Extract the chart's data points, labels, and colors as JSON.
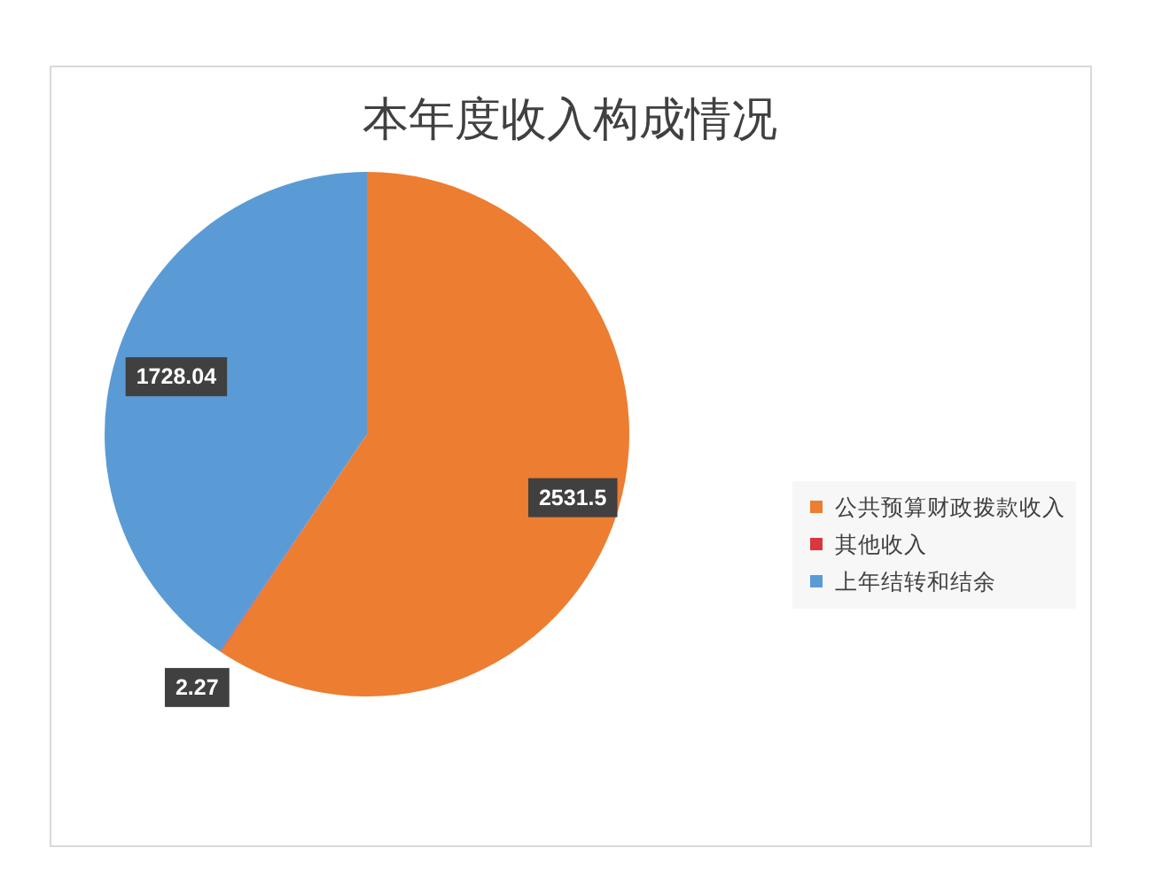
{
  "chart_data": {
    "type": "pie",
    "title": "本年度收入构成情况",
    "categories": [
      "公共预算财政拨款收入",
      "其他收入",
      "上年结转和结余"
    ],
    "values": [
      2531.5,
      2.27,
      1728.04
    ],
    "colors": [
      "#ed7d31",
      "#d9363e",
      "#5b9bd5"
    ],
    "data_labels": true,
    "legend": "right"
  }
}
